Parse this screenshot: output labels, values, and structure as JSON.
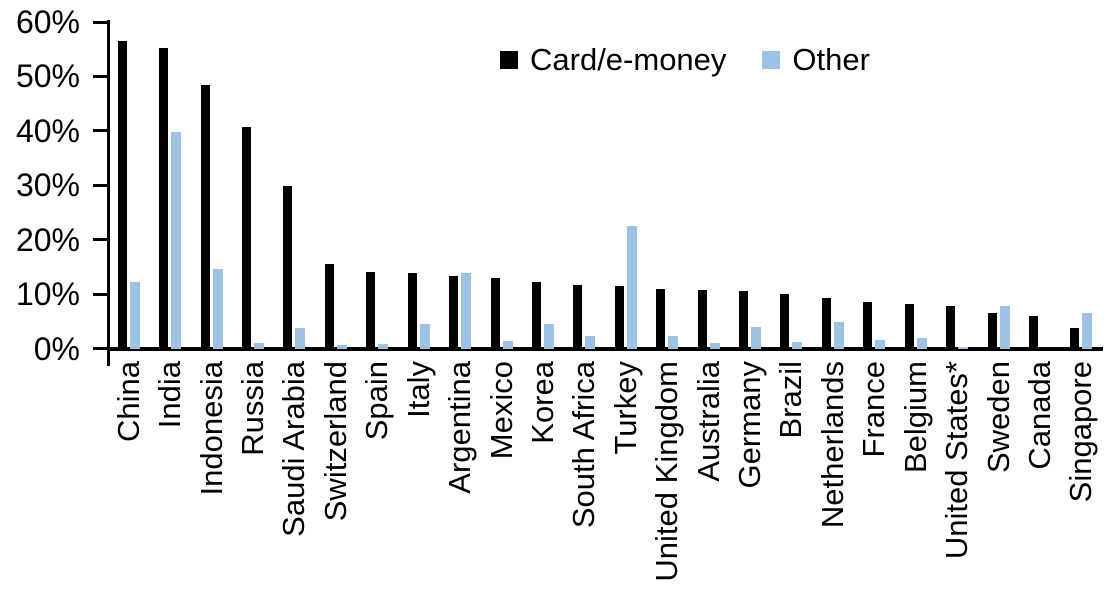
{
  "chart_data": {
    "type": "bar",
    "title": "",
    "xlabel": "",
    "ylabel": "",
    "ylim": [
      0,
      60
    ],
    "y_ticks": [
      "0%",
      "10%",
      "20%",
      "30%",
      "40%",
      "50%",
      "60%"
    ],
    "grid": false,
    "legend_position": "top-center",
    "categories": [
      "China",
      "India",
      "Indonesia",
      "Russia",
      "Saudi Arabia",
      "Switzerland",
      "Spain",
      "Italy",
      "Argentina",
      "Mexico",
      "Korea",
      "South Africa",
      "Turkey",
      "United Kingdom",
      "Australia",
      "Germany",
      "Brazil",
      "Netherlands",
      "France",
      "Belgium",
      "United States*",
      "Sweden",
      "Canada",
      "Singapore"
    ],
    "series": [
      {
        "name": "Card/e-money",
        "color": "#000000",
        "values": [
          56.5,
          55.2,
          48.5,
          40.7,
          29.9,
          15.6,
          14.1,
          13.9,
          13.4,
          12.9,
          12.2,
          11.7,
          11.5,
          11.0,
          10.8,
          10.6,
          10.0,
          9.2,
          8.6,
          8.1,
          7.8,
          6.5,
          5.9,
          3.8
        ]
      },
      {
        "name": "Other",
        "color": "#9CC3E6",
        "values": [
          12.3,
          39.8,
          14.6,
          1.0,
          3.8,
          0.7,
          0.9,
          4.6,
          13.9,
          1.3,
          4.6,
          2.3,
          22.6,
          2.3,
          1.0,
          3.9,
          1.2,
          4.8,
          1.5,
          2.0,
          0.2,
          7.9,
          0.0,
          6.6
        ]
      }
    ]
  }
}
